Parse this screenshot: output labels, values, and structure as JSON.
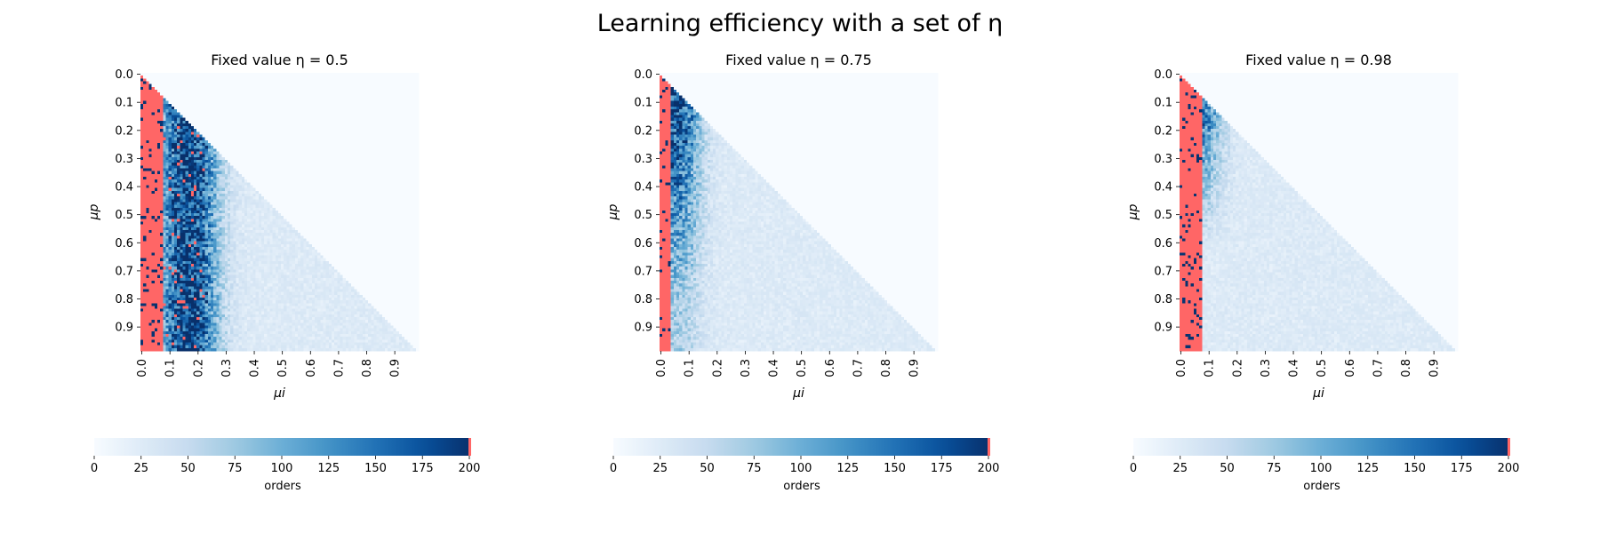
{
  "figure": {
    "suptitle": "Learning efficiency with a set of η"
  },
  "chart_data": [
    {
      "type": "heatmap",
      "title": "Fixed value η = 0.5",
      "eta": 0.5,
      "xlabel": "μi",
      "ylabel": "μp",
      "x_ticks": [
        "0.0",
        "0.1",
        "0.2",
        "0.3",
        "0.4",
        "0.5",
        "0.6",
        "0.7",
        "0.8",
        "0.9"
      ],
      "y_ticks": [
        "0.0",
        "0.1",
        "0.2",
        "0.3",
        "0.4",
        "0.5",
        "0.6",
        "0.7",
        "0.8",
        "0.9"
      ],
      "xlim": [
        0,
        0.99
      ],
      "ylim": [
        0,
        0.99
      ],
      "grid_cells": 99,
      "failure_region_max_mu_i": 0.08,
      "peak_band_mu_i": 0.17,
      "colorbar": {
        "label": "orders",
        "ticks": [
          0,
          25,
          50,
          75,
          100,
          125,
          150,
          175,
          200
        ],
        "range": [
          0,
          200
        ],
        "colormap": "Blues",
        "overflow_color": "#ff6666"
      }
    },
    {
      "type": "heatmap",
      "title": "Fixed value η = 0.75",
      "eta": 0.75,
      "xlabel": "μi",
      "ylabel": "μp",
      "x_ticks": [
        "0.0",
        "0.1",
        "0.2",
        "0.3",
        "0.4",
        "0.5",
        "0.6",
        "0.7",
        "0.8",
        "0.9"
      ],
      "y_ticks": [
        "0.0",
        "0.1",
        "0.2",
        "0.3",
        "0.4",
        "0.5",
        "0.6",
        "0.7",
        "0.8",
        "0.9"
      ],
      "xlim": [
        0,
        0.99
      ],
      "ylim": [
        0,
        0.99
      ],
      "grid_cells": 99,
      "failure_region_max_mu_i": 0.04,
      "peak_band_mu_i": 0.06,
      "colorbar": {
        "label": "orders",
        "ticks": [
          0,
          25,
          50,
          75,
          100,
          125,
          150,
          175,
          200
        ],
        "range": [
          0,
          200
        ],
        "colormap": "Blues",
        "overflow_color": "#ff6666"
      }
    },
    {
      "type": "heatmap",
      "title": "Fixed value η = 0.98",
      "eta": 0.98,
      "xlabel": "μi",
      "ylabel": "μp",
      "x_ticks": [
        "0.0",
        "0.1",
        "0.2",
        "0.3",
        "0.4",
        "0.5",
        "0.6",
        "0.7",
        "0.8",
        "0.9"
      ],
      "y_ticks": [
        "0.0",
        "0.1",
        "0.2",
        "0.3",
        "0.4",
        "0.5",
        "0.6",
        "0.7",
        "0.8",
        "0.9"
      ],
      "xlim": [
        0,
        0.99
      ],
      "ylim": [
        0,
        0.99
      ],
      "grid_cells": 99,
      "failure_region_max_mu_i": 0.08,
      "peak_band_mu_i": 0.06,
      "colorbar": {
        "label": "orders",
        "ticks": [
          0,
          25,
          50,
          75,
          100,
          125,
          150,
          175,
          200
        ],
        "range": [
          0,
          200
        ],
        "colormap": "Blues",
        "overflow_color": "#ff6666"
      }
    }
  ]
}
